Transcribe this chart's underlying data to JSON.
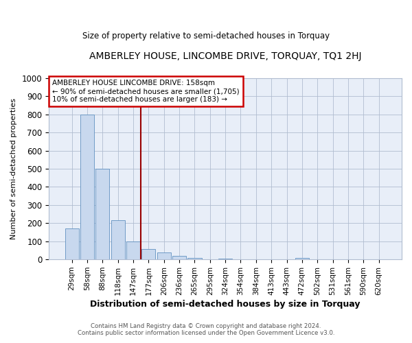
{
  "title": "AMBERLEY HOUSE, LINCOMBE DRIVE, TORQUAY, TQ1 2HJ",
  "subtitle": "Size of property relative to semi-detached houses in Torquay",
  "xlabel": "Distribution of semi-detached houses by size in Torquay",
  "ylabel": "Number of semi-detached properties",
  "bin_labels": [
    "29sqm",
    "58sqm",
    "88sqm",
    "118sqm",
    "147sqm",
    "177sqm",
    "206sqm",
    "236sqm",
    "265sqm",
    "295sqm",
    "324sqm",
    "354sqm",
    "384sqm",
    "413sqm",
    "443sqm",
    "472sqm",
    "502sqm",
    "531sqm",
    "561sqm",
    "590sqm",
    "620sqm"
  ],
  "bar_values": [
    170,
    800,
    500,
    215,
    100,
    57,
    40,
    18,
    10,
    0,
    5,
    0,
    0,
    0,
    0,
    7,
    0,
    0,
    0,
    0,
    0
  ],
  "bar_color": "#c8d8ee",
  "bar_edge_color": "#6090c0",
  "vline_x": 4.5,
  "vline_color": "#990000",
  "annotation_text": "AMBERLEY HOUSE LINCOMBE DRIVE: 158sqm\n← 90% of semi-detached houses are smaller (1,705)\n10% of semi-detached houses are larger (183) →",
  "annotation_box_color": "#ffffff",
  "annotation_box_edge": "#cc0000",
  "ylim": [
    0,
    1000
  ],
  "yticks": [
    0,
    100,
    200,
    300,
    400,
    500,
    600,
    700,
    800,
    900,
    1000
  ],
  "footer_line1": "Contains HM Land Registry data © Crown copyright and database right 2024.",
  "footer_line2": "Contains public sector information licensed under the Open Government Licence v3.0.",
  "bg_color": "#ffffff",
  "plot_bg_color": "#e8eef8"
}
